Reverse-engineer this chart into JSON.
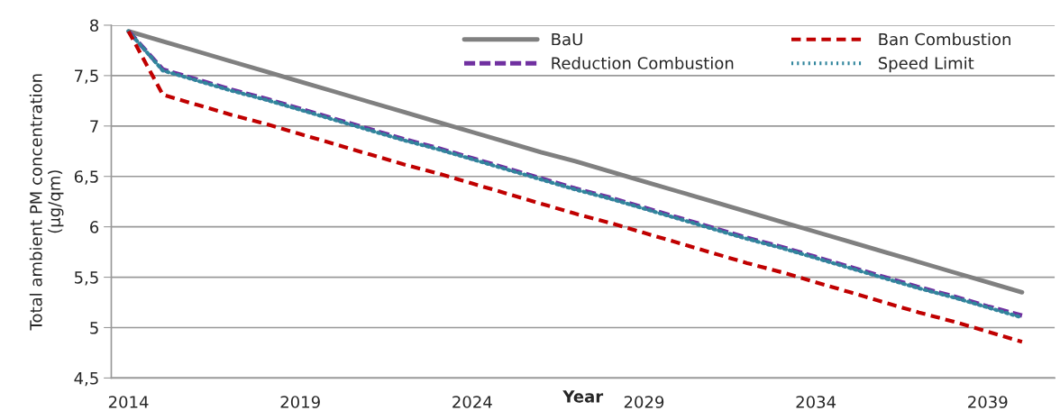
{
  "chart_data": {
    "type": "line",
    "xlabel": "Year",
    "ylabel": "Total ambient PM concentration\n(µg/qm)",
    "categories": [
      "2014",
      null,
      null,
      null,
      null,
      "2019",
      null,
      null,
      null,
      null,
      "2024",
      null,
      null,
      null,
      null,
      "2029",
      null,
      null,
      null,
      null,
      "2034",
      null,
      null,
      null,
      null,
      "2039",
      null
    ],
    "ylim": [
      4.5,
      8
    ],
    "yticks": [
      {
        "value": 4.5,
        "label": "4,5"
      },
      5,
      {
        "value": 5.5,
        "label": "5,5"
      },
      6,
      {
        "value": 6.5,
        "label": "6,5"
      },
      7,
      {
        "value": 7.5,
        "label": "7,5"
      },
      8
    ],
    "grid": "y",
    "legend": "top right",
    "marker": "none",
    "series": [
      {
        "name": "BaU",
        "color": "#808080",
        "line_style": "solid",
        "values": [
          7.94,
          7.84,
          7.74,
          7.64,
          7.54,
          7.44,
          7.34,
          7.24,
          7.14,
          7.04,
          6.94,
          6.84,
          6.74,
          6.65,
          6.55,
          6.45,
          6.35,
          6.25,
          6.15,
          6.05,
          5.95,
          5.85,
          5.75,
          5.65,
          5.55,
          5.45,
          5.35
        ]
      },
      {
        "name": "Ban Combustion",
        "color": "#c00000",
        "line_style": "dashed",
        "values": [
          7.94,
          7.31,
          7.21,
          7.11,
          7.02,
          6.92,
          6.82,
          6.72,
          6.62,
          6.53,
          6.43,
          6.33,
          6.23,
          6.13,
          6.04,
          5.94,
          5.84,
          5.74,
          5.64,
          5.55,
          5.45,
          5.35,
          5.25,
          5.15,
          5.06,
          4.96,
          4.86
        ]
      },
      {
        "name": "Reduction Combustion",
        "color": "#7030a0",
        "line_style": "longdash",
        "values": [
          7.94,
          7.56,
          7.46,
          7.36,
          7.27,
          7.17,
          7.07,
          6.97,
          6.87,
          6.78,
          6.68,
          6.58,
          6.48,
          6.38,
          6.29,
          6.19,
          6.09,
          5.99,
          5.89,
          5.8,
          5.7,
          5.6,
          5.5,
          5.4,
          5.31,
          5.21,
          5.12
        ]
      },
      {
        "name": "Speed Limit",
        "color": "#31859c",
        "line_style": "dotted",
        "values": [
          7.94,
          7.55,
          7.45,
          7.35,
          7.26,
          7.16,
          7.06,
          6.96,
          6.86,
          6.77,
          6.67,
          6.57,
          6.47,
          6.37,
          6.28,
          6.18,
          6.08,
          5.98,
          5.88,
          5.79,
          5.69,
          5.59,
          5.49,
          5.39,
          5.3,
          5.2,
          5.1
        ]
      }
    ]
  }
}
